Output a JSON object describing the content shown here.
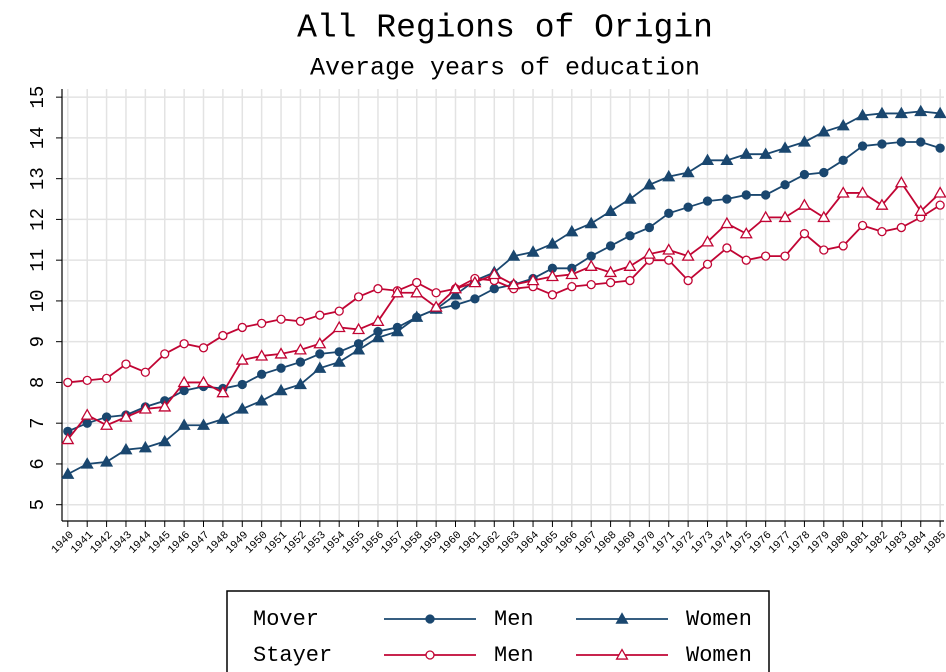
{
  "chart_data": {
    "type": "line",
    "title": "All Regions of Origin",
    "subtitle": "Average years of education",
    "x": [
      1940,
      1941,
      1942,
      1943,
      1944,
      1945,
      1946,
      1947,
      1948,
      1949,
      1950,
      1951,
      1952,
      1953,
      1954,
      1955,
      1956,
      1957,
      1958,
      1959,
      1960,
      1961,
      1962,
      1963,
      1964,
      1965,
      1966,
      1967,
      1968,
      1969,
      1970,
      1971,
      1972,
      1973,
      1974,
      1975,
      1976,
      1977,
      1978,
      1979,
      1980,
      1981,
      1982,
      1983,
      1984,
      1985
    ],
    "xlim": [
      1939.7,
      1985.2
    ],
    "xticks": [
      1940,
      1941,
      1942,
      1943,
      1944,
      1945,
      1946,
      1947,
      1948,
      1949,
      1950,
      1951,
      1952,
      1953,
      1954,
      1955,
      1956,
      1957,
      1958,
      1959,
      1960,
      1961,
      1962,
      1963,
      1964,
      1965,
      1966,
      1967,
      1968,
      1969,
      1970,
      1971,
      1972,
      1973,
      1974,
      1975,
      1976,
      1977,
      1978,
      1979,
      1980,
      1981,
      1982,
      1983,
      1984,
      1985
    ],
    "ylim": [
      4.6,
      15.2
    ],
    "yticks": [
      5,
      6,
      7,
      8,
      9,
      10,
      11,
      12,
      13,
      14,
      15
    ],
    "grid": true,
    "series": [
      {
        "group": "Mover",
        "name": "Men",
        "color": "#1a476f",
        "marker": "circle",
        "filled": true,
        "values": [
          6.8,
          7.0,
          7.15,
          7.2,
          7.4,
          7.55,
          7.8,
          7.9,
          7.85,
          7.95,
          8.2,
          8.35,
          8.5,
          8.7,
          8.75,
          8.95,
          9.25,
          9.35,
          9.6,
          9.8,
          9.9,
          10.05,
          10.3,
          10.4,
          10.55,
          10.8,
          10.8,
          11.1,
          11.35,
          11.6,
          11.8,
          12.15,
          12.3,
          12.45,
          12.5,
          12.6,
          12.6,
          12.85,
          13.1,
          13.15,
          13.45,
          13.8,
          13.85,
          13.9,
          13.9,
          13.75
        ]
      },
      {
        "group": "Mover",
        "name": "Women",
        "color": "#1a476f",
        "marker": "triangle",
        "filled": true,
        "values": [
          5.75,
          6.0,
          6.05,
          6.35,
          6.4,
          6.55,
          6.95,
          6.95,
          7.1,
          7.35,
          7.55,
          7.8,
          7.95,
          8.35,
          8.5,
          8.8,
          9.1,
          9.25,
          9.6,
          9.8,
          10.15,
          10.5,
          10.7,
          11.1,
          11.2,
          11.4,
          11.7,
          11.9,
          12.2,
          12.5,
          12.85,
          13.05,
          13.15,
          13.45,
          13.45,
          13.6,
          13.6,
          13.75,
          13.9,
          14.15,
          14.3,
          14.55,
          14.6,
          14.6,
          14.65,
          14.6
        ]
      },
      {
        "group": "Stayer",
        "name": "Men",
        "color": "#c10534",
        "marker": "circle",
        "filled": false,
        "values": [
          8.0,
          8.05,
          8.1,
          8.45,
          8.25,
          8.7,
          8.95,
          8.85,
          9.15,
          9.35,
          9.45,
          9.55,
          9.5,
          9.65,
          9.75,
          10.1,
          10.3,
          10.25,
          10.45,
          10.2,
          10.3,
          10.55,
          10.5,
          10.3,
          10.35,
          10.15,
          10.35,
          10.4,
          10.45,
          10.5,
          11.0,
          11.0,
          10.5,
          10.9,
          11.3,
          11.0,
          11.1,
          11.1,
          11.65,
          11.25,
          11.35,
          11.85,
          11.7,
          11.8,
          12.05,
          12.35
        ]
      },
      {
        "group": "Stayer",
        "name": "Women",
        "color": "#c10534",
        "marker": "triangle",
        "filled": false,
        "values": [
          6.6,
          7.2,
          6.95,
          7.15,
          7.35,
          7.4,
          8.0,
          8.0,
          7.75,
          8.55,
          8.65,
          8.7,
          8.8,
          8.95,
          9.35,
          9.3,
          9.5,
          10.2,
          10.2,
          9.85,
          10.3,
          10.45,
          10.65,
          10.4,
          10.5,
          10.6,
          10.65,
          10.85,
          10.7,
          10.85,
          11.15,
          11.25,
          11.1,
          11.45,
          11.9,
          11.65,
          12.05,
          12.05,
          12.35,
          12.05,
          12.65,
          12.65,
          12.35,
          12.9,
          12.2,
          12.65
        ]
      }
    ]
  }
}
